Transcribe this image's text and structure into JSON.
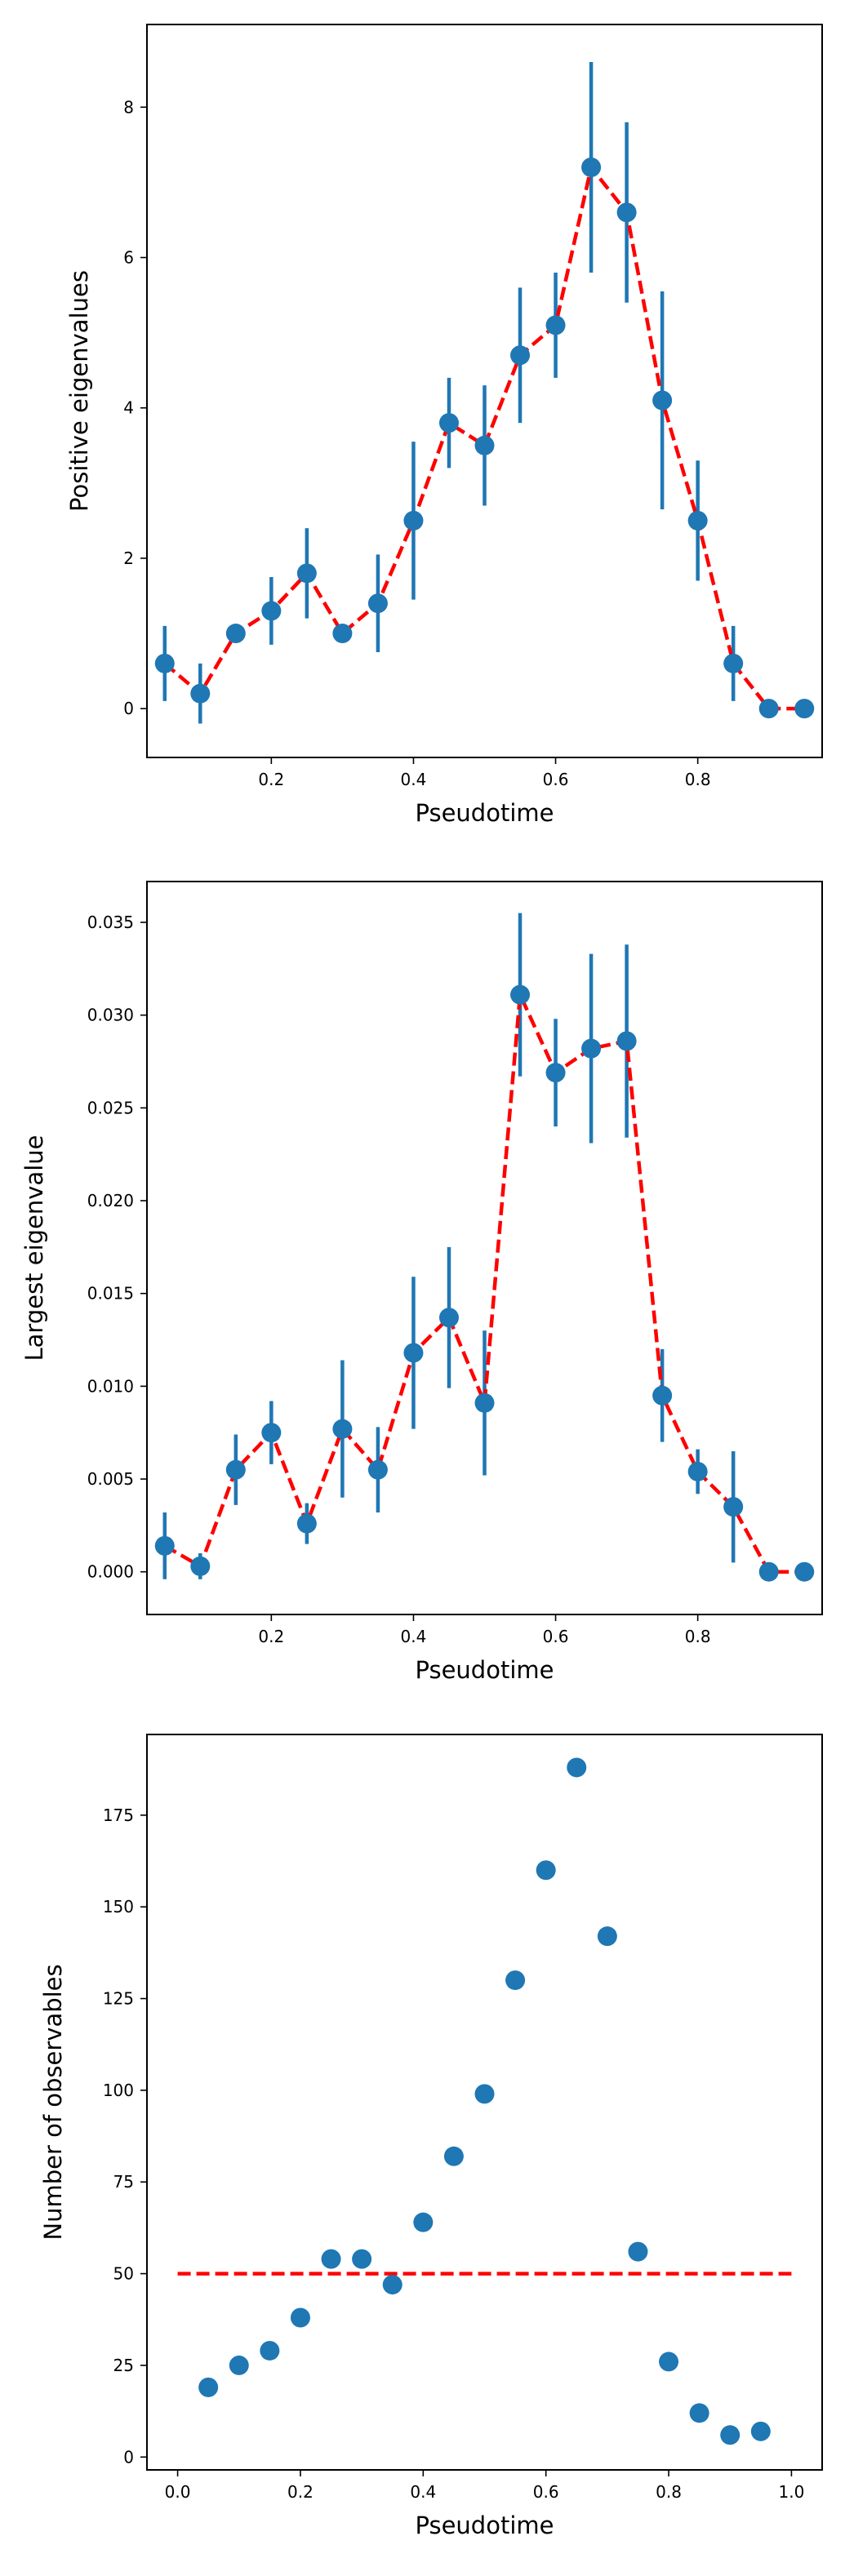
{
  "chart_data": [
    {
      "type": "scatter",
      "xlabel": "Pseudotime",
      "ylabel": "Positive eigenvalues",
      "xlim": [
        0.025,
        0.975
      ],
      "ylim": [
        -0.65,
        9.1
      ],
      "xticks": [
        0.2,
        0.4,
        0.6,
        0.8
      ],
      "xtick_labels": [
        "0.2",
        "0.4",
        "0.6",
        "0.8"
      ],
      "yticks": [
        0,
        2,
        4,
        6,
        8
      ],
      "ytick_labels": [
        "0",
        "2",
        "4",
        "6",
        "8"
      ],
      "grid": false,
      "series": [
        {
          "style": "points-with-errorbars",
          "color": "#1f77b4",
          "x": [
            0.05,
            0.1,
            0.15,
            0.2,
            0.25,
            0.3,
            0.35,
            0.4,
            0.45,
            0.5,
            0.55,
            0.6,
            0.65,
            0.7,
            0.75,
            0.8,
            0.85,
            0.9,
            0.95
          ],
          "y": [
            0.6,
            0.2,
            1.0,
            1.3,
            1.8,
            1.0,
            1.4,
            2.5,
            3.8,
            3.5,
            4.7,
            5.1,
            7.2,
            6.6,
            4.1,
            2.5,
            0.6,
            0.0,
            0.0
          ],
          "yerr": [
            0.5,
            0.4,
            0.0,
            0.45,
            0.6,
            0.0,
            0.65,
            1.05,
            0.6,
            0.8,
            0.9,
            0.7,
            1.4,
            1.2,
            1.45,
            0.8,
            0.5,
            0.0,
            0.0
          ]
        },
        {
          "style": "dashed-line",
          "color": "#ff0000",
          "x": [
            0.05,
            0.1,
            0.15,
            0.2,
            0.25,
            0.3,
            0.35,
            0.4,
            0.45,
            0.5,
            0.55,
            0.6,
            0.65,
            0.7,
            0.75,
            0.8,
            0.85,
            0.9,
            0.95
          ],
          "y": [
            0.6,
            0.2,
            1.0,
            1.3,
            1.8,
            1.0,
            1.4,
            2.5,
            3.8,
            3.5,
            4.7,
            5.1,
            7.2,
            6.6,
            4.1,
            2.5,
            0.6,
            0.0,
            0.0
          ]
        }
      ]
    },
    {
      "type": "scatter",
      "xlabel": "Pseudotime",
      "ylabel": "Largest eigenvalue",
      "xlim": [
        0.025,
        0.975
      ],
      "ylim": [
        -0.0023,
        0.0372
      ],
      "xticks": [
        0.2,
        0.4,
        0.6,
        0.8
      ],
      "xtick_labels": [
        "0.2",
        "0.4",
        "0.6",
        "0.8"
      ],
      "yticks": [
        0.0,
        0.005,
        0.01,
        0.015,
        0.02,
        0.025,
        0.03,
        0.035
      ],
      "ytick_labels": [
        "0.000",
        "0.005",
        "0.010",
        "0.015",
        "0.020",
        "0.025",
        "0.030",
        "0.035"
      ],
      "grid": false,
      "series": [
        {
          "style": "points-with-errorbars",
          "color": "#1f77b4",
          "x": [
            0.05,
            0.1,
            0.15,
            0.2,
            0.25,
            0.3,
            0.35,
            0.4,
            0.45,
            0.5,
            0.55,
            0.6,
            0.65,
            0.7,
            0.75,
            0.8,
            0.85,
            0.9,
            0.95
          ],
          "y": [
            0.0014,
            0.0003,
            0.0055,
            0.0075,
            0.0026,
            0.0077,
            0.0055,
            0.0118,
            0.0137,
            0.0091,
            0.0311,
            0.0269,
            0.0282,
            0.0286,
            0.0095,
            0.0054,
            0.0035,
            0.0,
            0.0
          ],
          "yerr": [
            0.0018,
            0.0007,
            0.0019,
            0.0017,
            0.0011,
            0.0037,
            0.0023,
            0.0041,
            0.0038,
            0.0039,
            0.0044,
            0.0029,
            0.0051,
            0.0052,
            0.0025,
            0.0012,
            0.003,
            0.0,
            0.0
          ]
        },
        {
          "style": "dashed-line",
          "color": "#ff0000",
          "x": [
            0.05,
            0.1,
            0.15,
            0.2,
            0.25,
            0.3,
            0.35,
            0.4,
            0.45,
            0.5,
            0.55,
            0.6,
            0.65,
            0.7,
            0.75,
            0.8,
            0.85,
            0.9,
            0.95
          ],
          "y": [
            0.0014,
            0.0003,
            0.0055,
            0.0075,
            0.0026,
            0.0077,
            0.0055,
            0.0118,
            0.0137,
            0.0091,
            0.0311,
            0.0269,
            0.0282,
            0.0286,
            0.0095,
            0.0054,
            0.0035,
            0.0,
            0.0
          ]
        }
      ]
    },
    {
      "type": "scatter",
      "xlabel": "Pseudotime",
      "ylabel": "Number of observables",
      "xlim": [
        -0.05,
        1.05
      ],
      "ylim": [
        -3.5,
        197
      ],
      "xticks": [
        0.0,
        0.2,
        0.4,
        0.6,
        0.8,
        1.0
      ],
      "xtick_labels": [
        "0.0",
        "0.2",
        "0.4",
        "0.6",
        "0.8",
        "1.0"
      ],
      "yticks": [
        0,
        25,
        50,
        75,
        100,
        125,
        150,
        175
      ],
      "ytick_labels": [
        "0",
        "25",
        "50",
        "75",
        "100",
        "125",
        "150",
        "175"
      ],
      "grid": false,
      "series": [
        {
          "style": "points",
          "color": "#1f77b4",
          "x": [
            0.05,
            0.1,
            0.15,
            0.2,
            0.25,
            0.3,
            0.35,
            0.4,
            0.45,
            0.5,
            0.55,
            0.6,
            0.65,
            0.7,
            0.75,
            0.8,
            0.85,
            0.9,
            0.95
          ],
          "y": [
            19,
            25,
            29,
            38,
            54,
            54,
            47,
            64,
            82,
            99,
            130,
            160,
            188,
            142,
            56,
            26,
            12,
            6,
            7
          ]
        },
        {
          "style": "dashed-line",
          "color": "#ff0000",
          "x": [
            0.0,
            1.0
          ],
          "y": [
            50,
            50
          ]
        }
      ]
    }
  ]
}
